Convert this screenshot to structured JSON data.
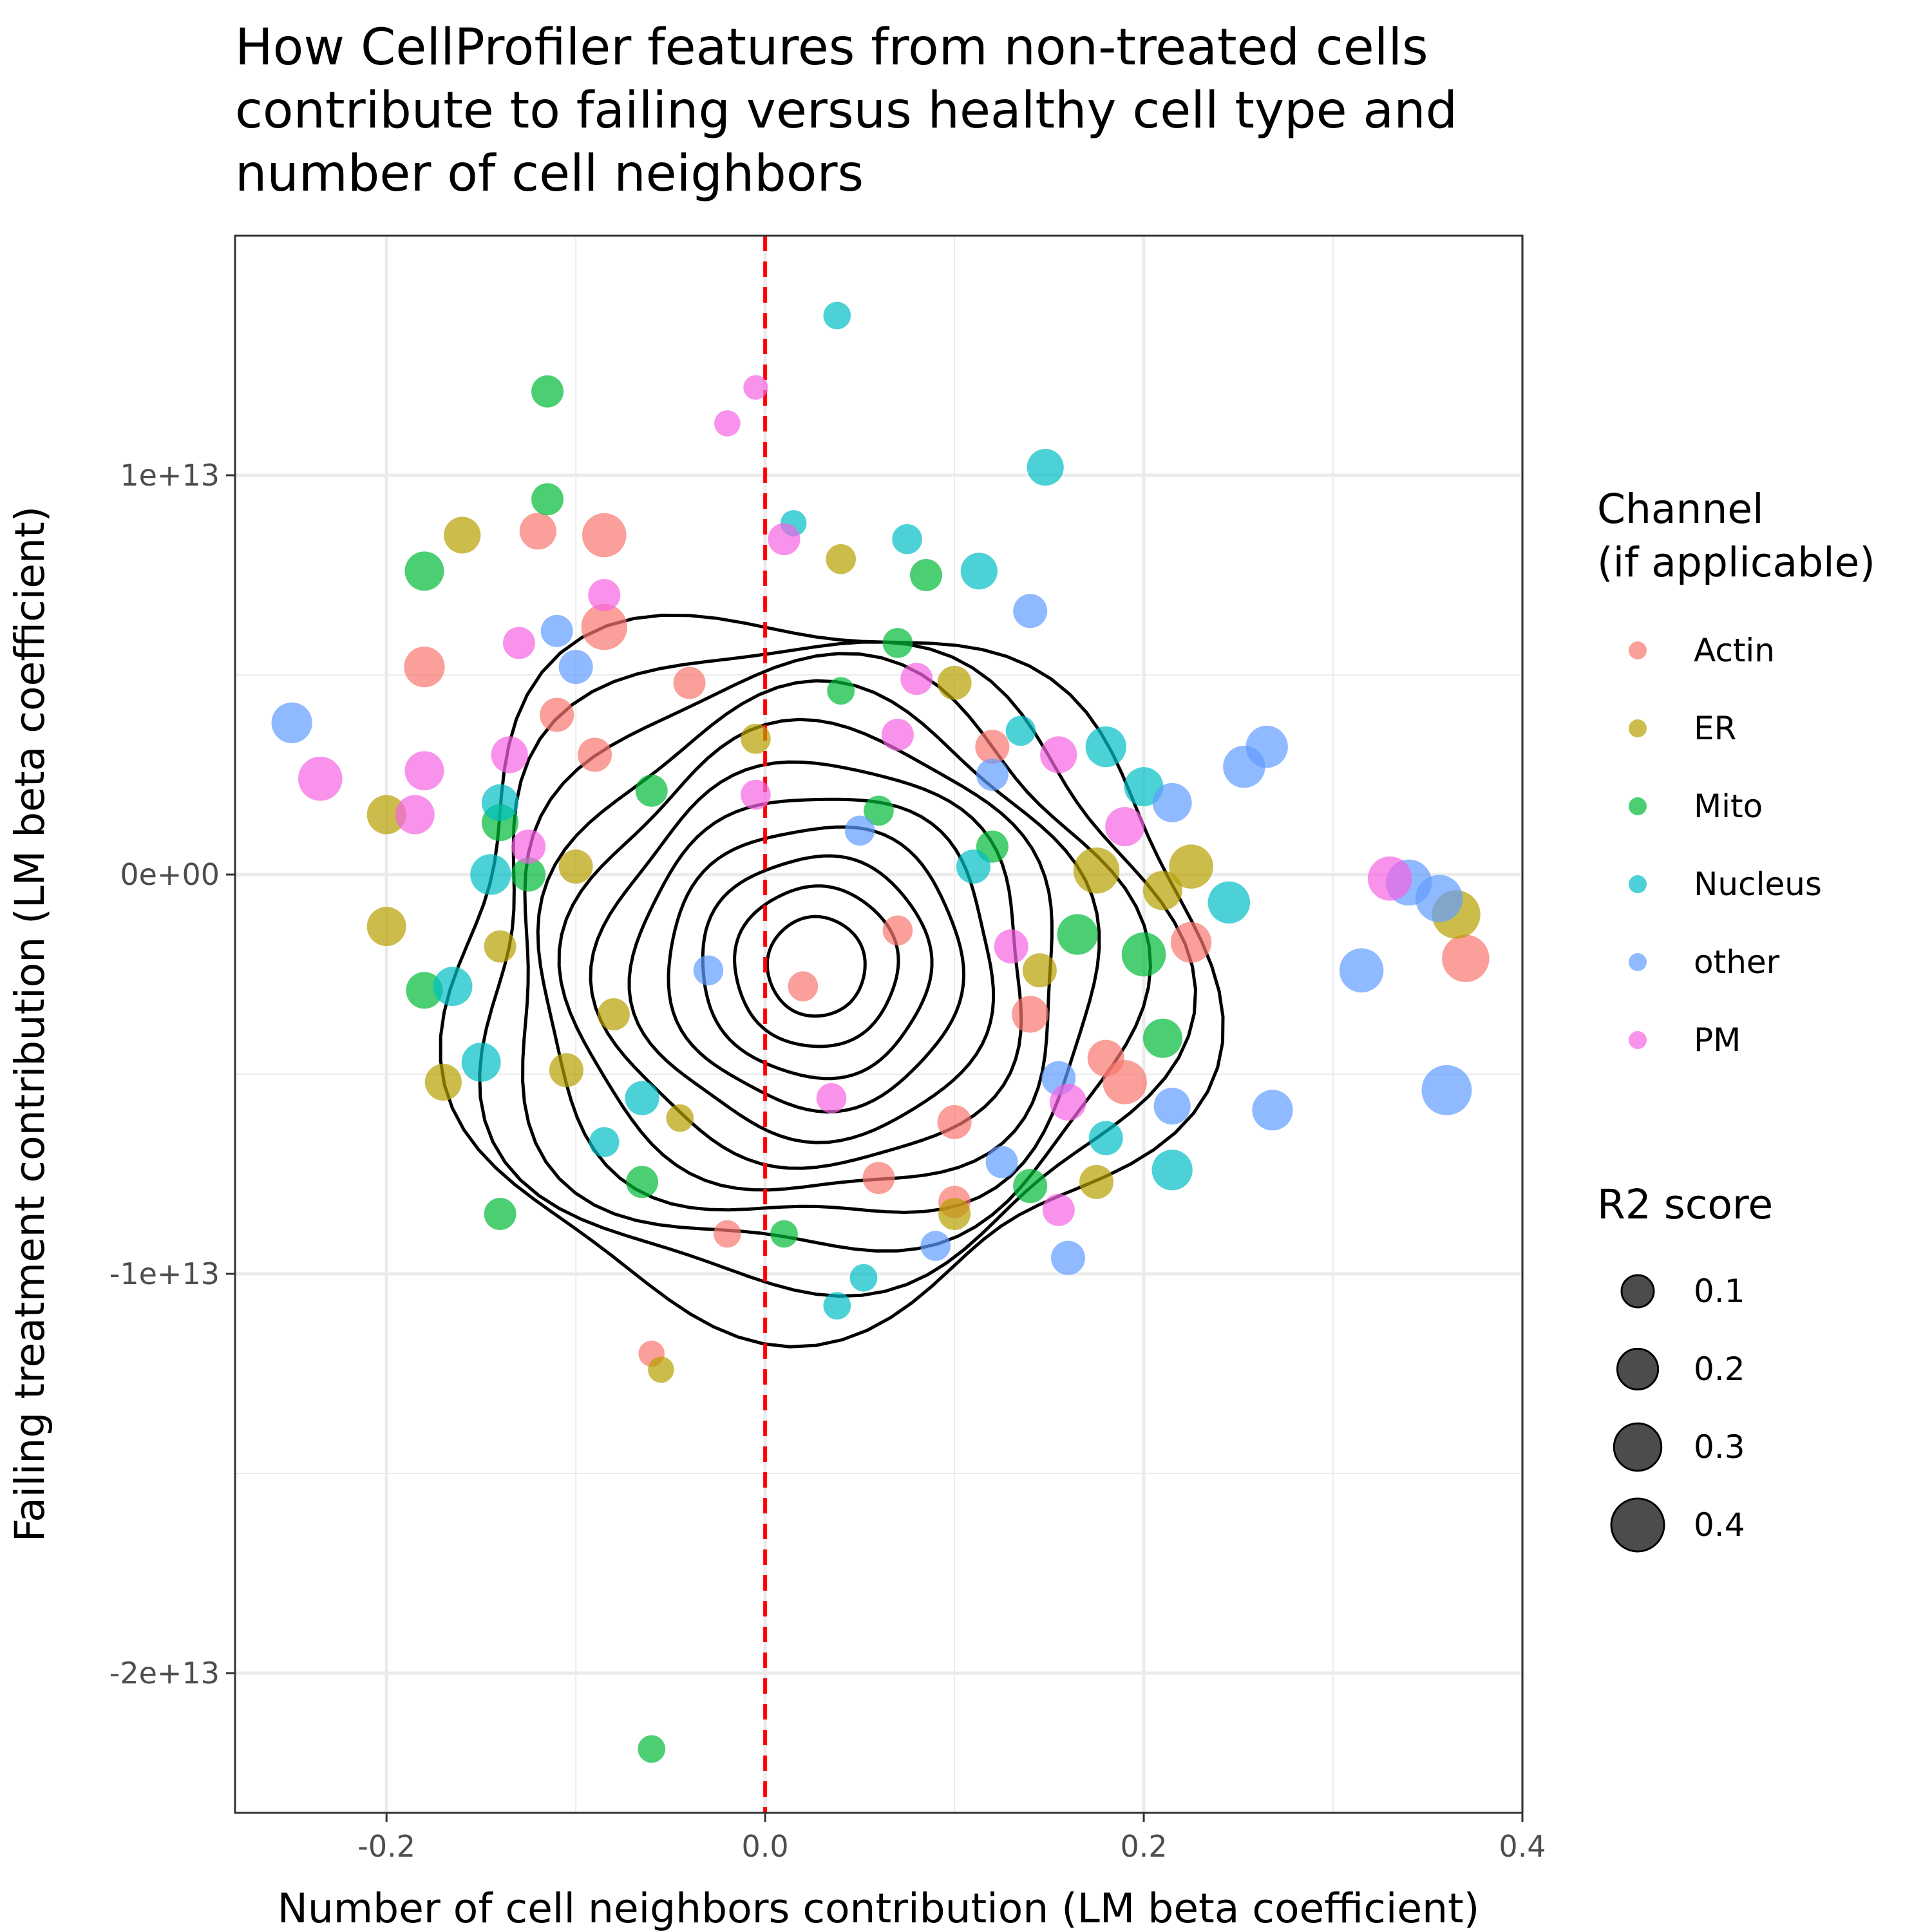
{
  "chart_data": {
    "type": "scatter",
    "title_lines": [
      "How CellProfiler features from non-treated cells",
      "contribute to failing versus healthy cell type and",
      "number of cell neighbors"
    ],
    "xlabel": "Number of cell neighbors contribution (LM beta coefficient)",
    "ylabel": "Failing treatment contribution (LM beta coefficient)",
    "xlim": [
      -0.28,
      0.4
    ],
    "ylim": [
      -23500000000000.0,
      16000000000000.0
    ],
    "x_ticks": [
      {
        "value": -0.2,
        "label": "-0.2"
      },
      {
        "value": 0.0,
        "label": "0.0"
      },
      {
        "value": 0.2,
        "label": "0.2"
      },
      {
        "value": 0.4,
        "label": "0.4"
      }
    ],
    "y_ticks": [
      {
        "value": 10000000000000.0,
        "label": "1e+13"
      },
      {
        "value": 0,
        "label": "0e+00"
      },
      {
        "value": -10000000000000.0,
        "label": "-1e+13"
      },
      {
        "value": -20000000000000.0,
        "label": "-2e+13"
      }
    ],
    "grid": true,
    "reference_line": {
      "x": 0,
      "color": "#ff0000",
      "style": "dashed"
    },
    "contours": "2D density contours (black)",
    "legend": {
      "position": "right",
      "color_title_lines": [
        "Channel",
        "(if applicable)"
      ],
      "size_title": "R2 score",
      "size_labels": [
        "0.1",
        "0.2",
        "0.3",
        "0.4"
      ],
      "size_values": [
        0.1,
        0.2,
        0.3,
        0.4
      ]
    },
    "series": [
      {
        "name": "Actin",
        "color": "#F8766D",
        "points": [
          {
            "x": -0.085,
            "y": 8500000000000.0,
            "r2": 0.25
          },
          {
            "x": -0.12,
            "y": 8600000000000.0,
            "r2": 0.15
          },
          {
            "x": -0.18,
            "y": 5200000000000.0,
            "r2": 0.2
          },
          {
            "x": -0.11,
            "y": 4000000000000.0,
            "r2": 0.12
          },
          {
            "x": 0.37,
            "y": -2100000000000.0,
            "r2": 0.3
          },
          {
            "x": -0.06,
            "y": -12000000000000.0,
            "r2": 0.05
          },
          {
            "x": 0.225,
            "y": -1700000000000.0,
            "r2": 0.2
          },
          {
            "x": 0.19,
            "y": -5200000000000.0,
            "r2": 0.25
          },
          {
            "x": 0.12,
            "y": 3200000000000.0,
            "r2": 0.12
          },
          {
            "x": -0.04,
            "y": 4800000000000.0,
            "r2": 0.1
          },
          {
            "x": 0.07,
            "y": -1400000000000.0,
            "r2": 0.08
          },
          {
            "x": 0.1,
            "y": -6200000000000.0,
            "r2": 0.12
          },
          {
            "x": -0.085,
            "y": 6200000000000.0,
            "r2": 0.28
          },
          {
            "x": 0.14,
            "y": -3500000000000.0,
            "r2": 0.15
          },
          {
            "x": 0.02,
            "y": -2800000000000.0,
            "r2": 0.08
          },
          {
            "x": 0.06,
            "y": -7600000000000.0,
            "r2": 0.1
          },
          {
            "x": -0.09,
            "y": 3000000000000.0,
            "r2": 0.12
          },
          {
            "x": 0.1,
            "y": -8200000000000.0,
            "r2": 0.1
          },
          {
            "x": 0.18,
            "y": -4600000000000.0,
            "r2": 0.15
          },
          {
            "x": -0.02,
            "y": -9000000000000.0,
            "r2": 0.06
          }
        ]
      },
      {
        "name": "ER",
        "color": "#B79F00",
        "points": [
          {
            "x": -0.16,
            "y": 8500000000000.0,
            "r2": 0.15
          },
          {
            "x": -0.2,
            "y": 1500000000000.0,
            "r2": 0.18
          },
          {
            "x": 0.365,
            "y": -1000000000000.0,
            "r2": 0.32
          },
          {
            "x": 0.225,
            "y": 200000000000.0,
            "r2": 0.25
          },
          {
            "x": 0.175,
            "y": 100000000000.0,
            "r2": 0.28
          },
          {
            "x": -0.055,
            "y": -12400000000000.0,
            "r2": 0.05
          },
          {
            "x": -0.17,
            "y": -5200000000000.0,
            "r2": 0.15
          },
          {
            "x": 0.1,
            "y": 4800000000000.0,
            "r2": 0.12
          },
          {
            "x": -0.2,
            "y": -1300000000000.0,
            "r2": 0.18
          },
          {
            "x": 0.04,
            "y": 7900000000000.0,
            "r2": 0.08
          },
          {
            "x": -0.105,
            "y": -4900000000000.0,
            "r2": 0.12
          },
          {
            "x": -0.1,
            "y": 200000000000.0,
            "r2": 0.12
          },
          {
            "x": 0.175,
            "y": -7700000000000.0,
            "r2": 0.12
          },
          {
            "x": -0.045,
            "y": -6100000000000.0,
            "r2": 0.06
          },
          {
            "x": 0.1,
            "y": -8500000000000.0,
            "r2": 0.1
          },
          {
            "x": 0.21,
            "y": -400000000000.0,
            "r2": 0.18
          },
          {
            "x": -0.14,
            "y": -1800000000000.0,
            "r2": 0.1
          },
          {
            "x": -0.08,
            "y": -3500000000000.0,
            "r2": 0.1
          },
          {
            "x": 0.145,
            "y": -2400000000000.0,
            "r2": 0.12
          },
          {
            "x": -0.005,
            "y": 3400000000000.0,
            "r2": 0.08
          }
        ]
      },
      {
        "name": "Mito",
        "color": "#00BA38",
        "points": [
          {
            "x": -0.18,
            "y": 7600000000000.0,
            "r2": 0.18
          },
          {
            "x": -0.115,
            "y": 12100000000000.0,
            "r2": 0.1
          },
          {
            "x": -0.115,
            "y": 9400000000000.0,
            "r2": 0.1
          },
          {
            "x": -0.14,
            "y": -8500000000000.0,
            "r2": 0.1
          },
          {
            "x": -0.06,
            "y": -21900000000000.0,
            "r2": 0.06
          },
          {
            "x": 0.21,
            "y": -4100000000000.0,
            "r2": 0.18
          },
          {
            "x": 0.2,
            "y": -2000000000000.0,
            "r2": 0.25
          },
          {
            "x": 0.165,
            "y": -1500000000000.0,
            "r2": 0.2
          },
          {
            "x": 0.14,
            "y": -7800000000000.0,
            "r2": 0.12
          },
          {
            "x": -0.065,
            "y": -7700000000000.0,
            "r2": 0.1
          },
          {
            "x": -0.14,
            "y": 1300000000000.0,
            "r2": 0.15
          },
          {
            "x": -0.18,
            "y": -2900000000000.0,
            "r2": 0.15
          },
          {
            "x": 0.085,
            "y": 7500000000000.0,
            "r2": 0.1
          },
          {
            "x": 0.04,
            "y": 4600000000000.0,
            "r2": 0.06
          },
          {
            "x": 0.12,
            "y": 700000000000.0,
            "r2": 0.1
          },
          {
            "x": 0.06,
            "y": 1600000000000.0,
            "r2": 0.08
          },
          {
            "x": -0.06,
            "y": 2100000000000.0,
            "r2": 0.1
          },
          {
            "x": 0.01,
            "y": -9000000000000.0,
            "r2": 0.06
          },
          {
            "x": -0.125,
            "y": 0,
            "r2": 0.12
          },
          {
            "x": 0.07,
            "y": 5800000000000.0,
            "r2": 0.08
          }
        ]
      },
      {
        "name": "Nucleus",
        "color": "#00BFC4",
        "points": [
          {
            "x": 0.038,
            "y": 14000000000000.0,
            "r2": 0.06
          },
          {
            "x": 0.148,
            "y": 10200000000000.0,
            "r2": 0.15
          },
          {
            "x": 0.113,
            "y": 7600000000000.0,
            "r2": 0.15
          },
          {
            "x": 0.18,
            "y": 3200000000000.0,
            "r2": 0.2
          },
          {
            "x": 0.2,
            "y": 2200000000000.0,
            "r2": 0.18
          },
          {
            "x": 0.245,
            "y": -700000000000.0,
            "r2": 0.22
          },
          {
            "x": 0.215,
            "y": -7400000000000.0,
            "r2": 0.2
          },
          {
            "x": 0.038,
            "y": -10800000000000.0,
            "r2": 0.06
          },
          {
            "x": 0.052,
            "y": -10100000000000.0,
            "r2": 0.06
          },
          {
            "x": -0.15,
            "y": -4700000000000.0,
            "r2": 0.18
          },
          {
            "x": -0.165,
            "y": -2800000000000.0,
            "r2": 0.18
          },
          {
            "x": -0.14,
            "y": 1800000000000.0,
            "r2": 0.15
          },
          {
            "x": -0.145,
            "y": 0,
            "r2": 0.2
          },
          {
            "x": 0.075,
            "y": 8400000000000.0,
            "r2": 0.08
          },
          {
            "x": -0.085,
            "y": -6700000000000.0,
            "r2": 0.08
          },
          {
            "x": 0.18,
            "y": -6600000000000.0,
            "r2": 0.12
          },
          {
            "x": -0.065,
            "y": -5600000000000.0,
            "r2": 0.12
          },
          {
            "x": 0.135,
            "y": 3600000000000.0,
            "r2": 0.08
          },
          {
            "x": 0.11,
            "y": 200000000000.0,
            "r2": 0.12
          },
          {
            "x": 0.015,
            "y": 8800000000000.0,
            "r2": 0.05
          }
        ]
      },
      {
        "name": "other",
        "color": "#619CFF",
        "points": [
          {
            "x": -0.25,
            "y": 3800000000000.0,
            "r2": 0.2
          },
          {
            "x": 0.265,
            "y": 3200000000000.0,
            "r2": 0.22
          },
          {
            "x": 0.253,
            "y": 2700000000000.0,
            "r2": 0.22
          },
          {
            "x": 0.34,
            "y": -200000000000.0,
            "r2": 0.28
          },
          {
            "x": 0.356,
            "y": -600000000000.0,
            "r2": 0.3
          },
          {
            "x": 0.36,
            "y": -5400000000000.0,
            "r2": 0.35
          },
          {
            "x": 0.315,
            "y": -2400000000000.0,
            "r2": 0.25
          },
          {
            "x": 0.268,
            "y": -5900000000000.0,
            "r2": 0.2
          },
          {
            "x": 0.215,
            "y": -5800000000000.0,
            "r2": 0.15
          },
          {
            "x": 0.16,
            "y": -9600000000000.0,
            "r2": 0.12
          },
          {
            "x": 0.14,
            "y": 6600000000000.0,
            "r2": 0.12
          },
          {
            "x": 0.09,
            "y": -9300000000000.0,
            "r2": 0.08
          },
          {
            "x": 0.215,
            "y": 1800000000000.0,
            "r2": 0.18
          },
          {
            "x": -0.11,
            "y": 6100000000000.0,
            "r2": 0.1
          },
          {
            "x": -0.1,
            "y": 5200000000000.0,
            "r2": 0.12
          },
          {
            "x": 0.12,
            "y": 2500000000000.0,
            "r2": 0.1
          },
          {
            "x": 0.155,
            "y": -5100000000000.0,
            "r2": 0.12
          },
          {
            "x": -0.03,
            "y": -2400000000000.0,
            "r2": 0.08
          },
          {
            "x": 0.05,
            "y": 1100000000000.0,
            "r2": 0.08
          },
          {
            "x": 0.125,
            "y": -7200000000000.0,
            "r2": 0.1
          }
        ]
      },
      {
        "name": "PM",
        "color": "#F564E3",
        "points": [
          {
            "x": -0.235,
            "y": 2400000000000.0,
            "r2": 0.25
          },
          {
            "x": 0.33,
            "y": -100000000000.0,
            "r2": 0.25
          },
          {
            "x": -0.18,
            "y": 2600000000000.0,
            "r2": 0.18
          },
          {
            "x": -0.185,
            "y": 1500000000000.0,
            "r2": 0.18
          },
          {
            "x": -0.135,
            "y": 3000000000000.0,
            "r2": 0.15
          },
          {
            "x": -0.125,
            "y": 700000000000.0,
            "r2": 0.12
          },
          {
            "x": 0.19,
            "y": 1200000000000.0,
            "r2": 0.18
          },
          {
            "x": 0.155,
            "y": 3000000000000.0,
            "r2": 0.15
          },
          {
            "x": 0.16,
            "y": -5700000000000.0,
            "r2": 0.15
          },
          {
            "x": 0.155,
            "y": -8400000000000.0,
            "r2": 0.1
          },
          {
            "x": 0.01,
            "y": 8400000000000.0,
            "r2": 0.1
          },
          {
            "x": -0.02,
            "y": 11300000000000.0,
            "r2": 0.05
          },
          {
            "x": -0.005,
            "y": 12200000000000.0,
            "r2": 0.04
          },
          {
            "x": -0.085,
            "y": 7000000000000.0,
            "r2": 0.1
          },
          {
            "x": -0.13,
            "y": 5800000000000.0,
            "r2": 0.1
          },
          {
            "x": 0.08,
            "y": 4900000000000.0,
            "r2": 0.1
          },
          {
            "x": 0.13,
            "y": -1800000000000.0,
            "r2": 0.12
          },
          {
            "x": -0.005,
            "y": 2000000000000.0,
            "r2": 0.08
          },
          {
            "x": 0.07,
            "y": 3500000000000.0,
            "r2": 0.1
          },
          {
            "x": 0.035,
            "y": -5600000000000.0,
            "r2": 0.08
          }
        ]
      }
    ]
  }
}
